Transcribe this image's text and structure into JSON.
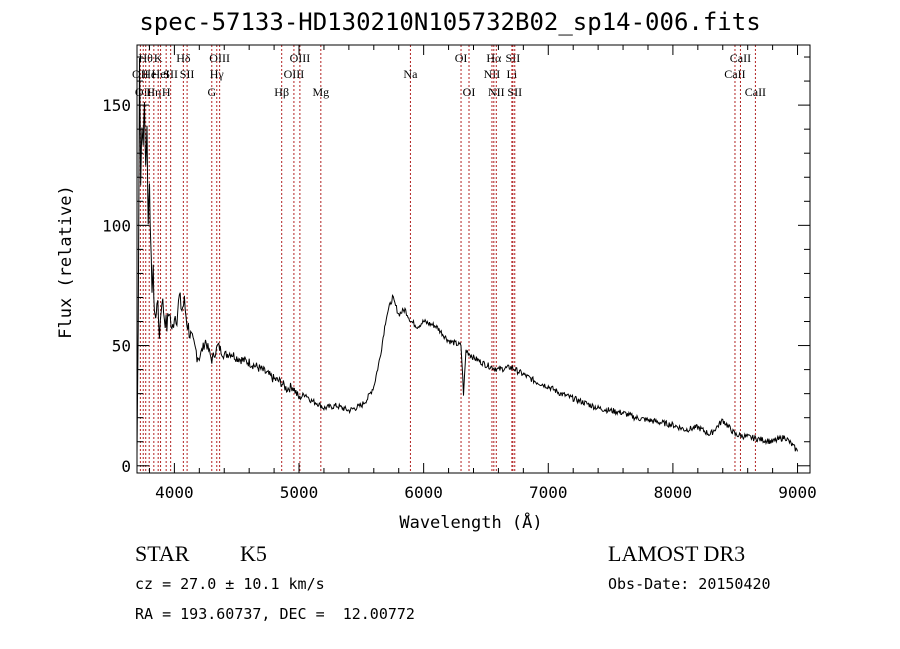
{
  "title": "spec-57133-HD130210N105732B02_sp14-006.fits",
  "chart_data": {
    "type": "line",
    "xlabel": "Wavelength (Å)",
    "ylabel": "Flux (relative)",
    "xlim": [
      3700,
      9100
    ],
    "ylim": [
      -3,
      175
    ],
    "x_ticks": [
      4000,
      5000,
      6000,
      7000,
      8000,
      9000
    ],
    "y_ticks": [
      0,
      50,
      100,
      150
    ],
    "series": [
      {
        "x": [
          3700,
          3710,
          3720,
          3730,
          3740,
          3750,
          3760,
          3770,
          3780,
          3790,
          3800,
          3810,
          3820,
          3830,
          3840,
          3850,
          3860,
          3880,
          3900,
          3920,
          3940,
          3960,
          3980,
          4000,
          4020,
          4040,
          4060,
          4080,
          4100,
          4150,
          4200,
          4250,
          4300,
          4350,
          4400,
          4450,
          4500,
          4600,
          4700,
          4800,
          4850,
          4900,
          4950,
          5000,
          5050,
          5100,
          5150,
          5200,
          5300,
          5400,
          5500,
          5550,
          5600,
          5650,
          5700,
          5750,
          5800,
          5850,
          5900,
          5950,
          6000,
          6100,
          6200,
          6300,
          6320,
          6340,
          6400,
          6500,
          6600,
          6700,
          6800,
          6900,
          7000,
          7100,
          7200,
          7300,
          7400,
          7500,
          7600,
          7700,
          7800,
          7900,
          8000,
          8100,
          8200,
          8300,
          8400,
          8500,
          8600,
          8700,
          8800,
          8900,
          9000
        ],
        "y": [
          5,
          60,
          170,
          120,
          140,
          135,
          150,
          125,
          140,
          100,
          120,
          90,
          75,
          80,
          65,
          60,
          70,
          55,
          70,
          62,
          58,
          65,
          55,
          63,
          62,
          70,
          65,
          68,
          60,
          50,
          45,
          52,
          44,
          50,
          46,
          47,
          45,
          43,
          40,
          36,
          35,
          32,
          33,
          28,
          30,
          27,
          26,
          24,
          25,
          23,
          25,
          28,
          33,
          45,
          62,
          70,
          63,
          65,
          60,
          58,
          60,
          58,
          52,
          50,
          30,
          48,
          45,
          42,
          40,
          41,
          38,
          35,
          33,
          30,
          28,
          26,
          24,
          23,
          22,
          20,
          19,
          18,
          17,
          15,
          16,
          13,
          19,
          13,
          12,
          11,
          10,
          12,
          6
        ]
      }
    ],
    "line_markers": [
      {
        "wl": 3727,
        "text": "OII",
        "row": 2
      },
      {
        "wl": 3750,
        "text": "OII",
        "row": 3
      },
      {
        "wl": 3770,
        "text": "Hθ",
        "row": 1
      },
      {
        "wl": 3798,
        "text": "He",
        "row": 2
      },
      {
        "wl": 3835,
        "text": "Hη",
        "row": 3
      },
      {
        "wl": 3870,
        "text": "K",
        "row": 1
      },
      {
        "wl": 3889,
        "text": "HeI",
        "row": 2
      },
      {
        "wl": 3934,
        "text": "H",
        "row": 3
      },
      {
        "wl": 3970,
        "text": "SII",
        "row": 2
      },
      {
        "wl": 4072,
        "text": "Hδ",
        "row": 1
      },
      {
        "wl": 4102,
        "text": "SII",
        "row": 2
      },
      {
        "wl": 4300,
        "text": "G",
        "row": 3
      },
      {
        "wl": 4340,
        "text": "Hγ",
        "row": 2
      },
      {
        "wl": 4363,
        "text": "OIII",
        "row": 1
      },
      {
        "wl": 4861,
        "text": "Hβ",
        "row": 3
      },
      {
        "wl": 4959,
        "text": "OIII",
        "row": 2
      },
      {
        "wl": 5007,
        "text": "OIII",
        "row": 1
      },
      {
        "wl": 5175,
        "text": "Mg",
        "row": 3
      },
      {
        "wl": 5894,
        "text": "Na",
        "row": 2
      },
      {
        "wl": 6300,
        "text": "OI",
        "row": 1
      },
      {
        "wl": 6364,
        "text": "OI",
        "row": 3
      },
      {
        "wl": 6548,
        "text": "NII",
        "row": 2
      },
      {
        "wl": 6563,
        "text": "Hα",
        "row": 1
      },
      {
        "wl": 6583,
        "text": "NII",
        "row": 3
      },
      {
        "wl": 6708,
        "text": "Li",
        "row": 2
      },
      {
        "wl": 6716,
        "text": "SII",
        "row": 1
      },
      {
        "wl": 6731,
        "text": "SII",
        "row": 3
      },
      {
        "wl": 8498,
        "text": "CaII",
        "row": 2
      },
      {
        "wl": 8542,
        "text": "CaII",
        "row": 1
      },
      {
        "wl": 8662,
        "text": "CaII",
        "row": 3
      }
    ],
    "line_color": "#000000",
    "marker_color": "#b22222"
  },
  "info": {
    "class_label": "STAR",
    "subclass": "K5",
    "survey": "LAMOST DR3",
    "cz": "cz = 27.0 ± 10.1 km/s",
    "obs_date": "Obs-Date: 20150420",
    "radec": "RA = 193.60737, DEC =  12.00772"
  }
}
